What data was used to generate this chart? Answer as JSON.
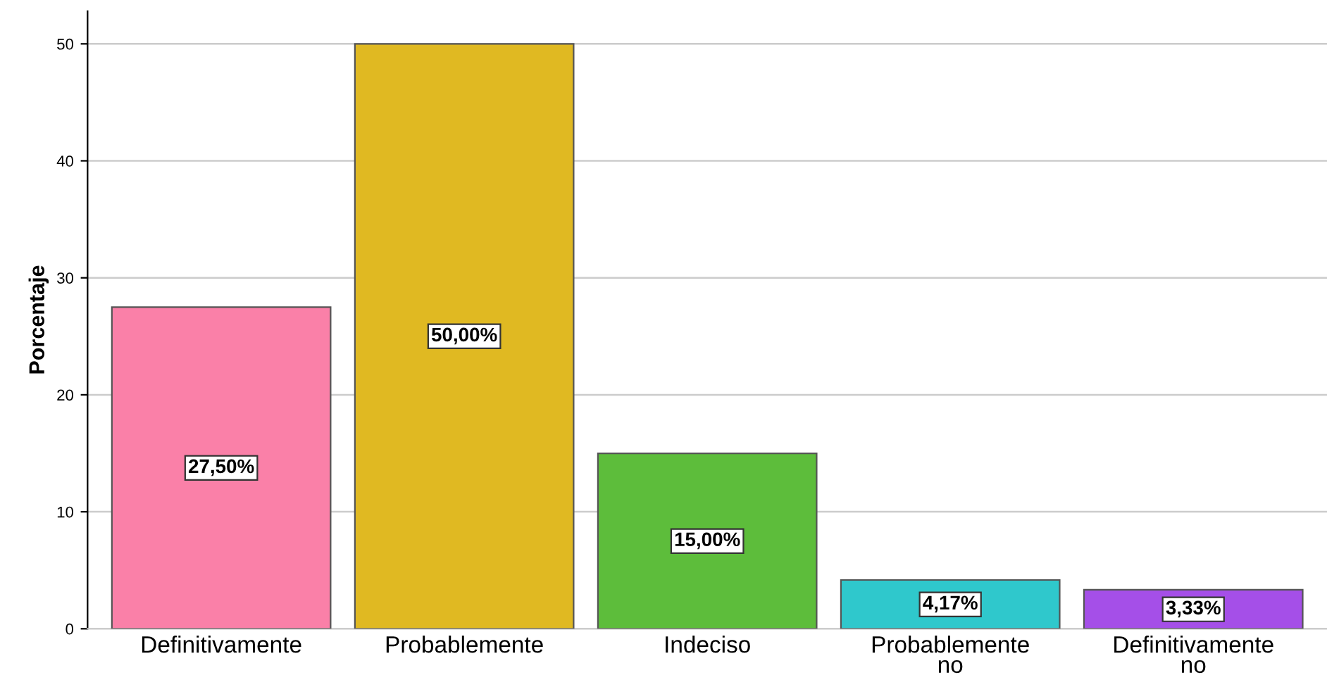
{
  "chart_data": {
    "type": "bar",
    "ylabel": "Porcentaje",
    "categories": [
      "Definitivamente",
      "Probablemente",
      "Indeciso",
      "Probablemente\nno",
      "Definitivamente\nno"
    ],
    "values": [
      27.5,
      50,
      15,
      4.17,
      3.33
    ],
    "value_labels": [
      "27,50%",
      "50,00%",
      "15,00%",
      "4,17%",
      "3,33%"
    ],
    "colors": [
      "#fa80a8",
      "#e0b922",
      "#5dbd3b",
      "#2fc8cc",
      "#a54fe8"
    ],
    "ylim": [
      0,
      52.8
    ],
    "yticks": [
      0,
      10,
      20,
      30,
      40,
      50
    ],
    "grid": "y",
    "legend": false
  }
}
